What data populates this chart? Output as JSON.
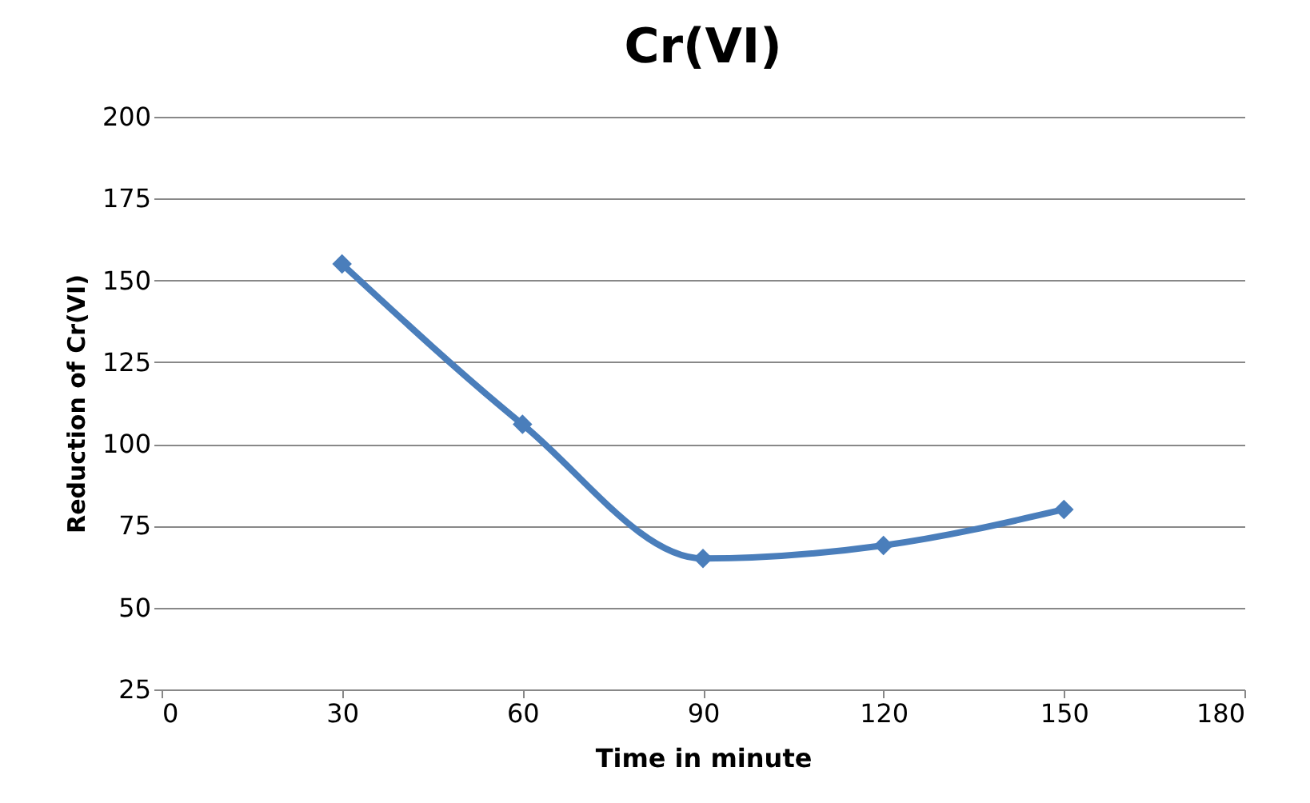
{
  "chart_data": {
    "type": "line",
    "title": "Cr(VI)",
    "xlabel": "Time in minute",
    "ylabel": "Reduction of Cr(VI)",
    "x": [
      30,
      60,
      90,
      120,
      150
    ],
    "series": [
      {
        "color": "#4a7ebb",
        "values": [
          155,
          106,
          65,
          69,
          80
        ]
      }
    ],
    "xlim": [
      0,
      180
    ],
    "xticks": [
      0,
      30,
      60,
      90,
      120,
      150,
      180
    ],
    "ylim": [
      25,
      200
    ],
    "yticks": [
      25,
      50,
      75,
      100,
      125,
      150,
      175,
      200
    ],
    "grid": "y",
    "marker": "diamond",
    "line_style": "solid"
  }
}
